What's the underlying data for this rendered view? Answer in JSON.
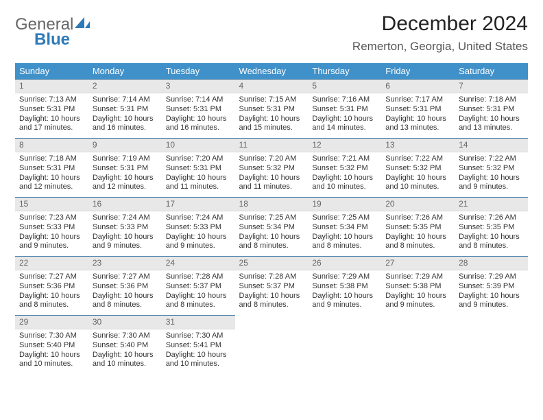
{
  "logo": {
    "text1": "General",
    "text2": "Blue",
    "color_gray": "#666666",
    "color_blue": "#2d7ab8"
  },
  "title": "December 2024",
  "location": "Remerton, Georgia, United States",
  "header_bg": "#4091c9",
  "daynum_bg": "#e8e8e8",
  "row_border": "#4a7fa8",
  "weekdays": [
    "Sunday",
    "Monday",
    "Tuesday",
    "Wednesday",
    "Thursday",
    "Friday",
    "Saturday"
  ],
  "weeks": [
    [
      {
        "n": "1",
        "sr": "Sunrise: 7:13 AM",
        "ss": "Sunset: 5:31 PM",
        "dl": "Daylight: 10 hours and 17 minutes."
      },
      {
        "n": "2",
        "sr": "Sunrise: 7:14 AM",
        "ss": "Sunset: 5:31 PM",
        "dl": "Daylight: 10 hours and 16 minutes."
      },
      {
        "n": "3",
        "sr": "Sunrise: 7:14 AM",
        "ss": "Sunset: 5:31 PM",
        "dl": "Daylight: 10 hours and 16 minutes."
      },
      {
        "n": "4",
        "sr": "Sunrise: 7:15 AM",
        "ss": "Sunset: 5:31 PM",
        "dl": "Daylight: 10 hours and 15 minutes."
      },
      {
        "n": "5",
        "sr": "Sunrise: 7:16 AM",
        "ss": "Sunset: 5:31 PM",
        "dl": "Daylight: 10 hours and 14 minutes."
      },
      {
        "n": "6",
        "sr": "Sunrise: 7:17 AM",
        "ss": "Sunset: 5:31 PM",
        "dl": "Daylight: 10 hours and 13 minutes."
      },
      {
        "n": "7",
        "sr": "Sunrise: 7:18 AM",
        "ss": "Sunset: 5:31 PM",
        "dl": "Daylight: 10 hours and 13 minutes."
      }
    ],
    [
      {
        "n": "8",
        "sr": "Sunrise: 7:18 AM",
        "ss": "Sunset: 5:31 PM",
        "dl": "Daylight: 10 hours and 12 minutes."
      },
      {
        "n": "9",
        "sr": "Sunrise: 7:19 AM",
        "ss": "Sunset: 5:31 PM",
        "dl": "Daylight: 10 hours and 12 minutes."
      },
      {
        "n": "10",
        "sr": "Sunrise: 7:20 AM",
        "ss": "Sunset: 5:31 PM",
        "dl": "Daylight: 10 hours and 11 minutes."
      },
      {
        "n": "11",
        "sr": "Sunrise: 7:20 AM",
        "ss": "Sunset: 5:32 PM",
        "dl": "Daylight: 10 hours and 11 minutes."
      },
      {
        "n": "12",
        "sr": "Sunrise: 7:21 AM",
        "ss": "Sunset: 5:32 PM",
        "dl": "Daylight: 10 hours and 10 minutes."
      },
      {
        "n": "13",
        "sr": "Sunrise: 7:22 AM",
        "ss": "Sunset: 5:32 PM",
        "dl": "Daylight: 10 hours and 10 minutes."
      },
      {
        "n": "14",
        "sr": "Sunrise: 7:22 AM",
        "ss": "Sunset: 5:32 PM",
        "dl": "Daylight: 10 hours and 9 minutes."
      }
    ],
    [
      {
        "n": "15",
        "sr": "Sunrise: 7:23 AM",
        "ss": "Sunset: 5:33 PM",
        "dl": "Daylight: 10 hours and 9 minutes."
      },
      {
        "n": "16",
        "sr": "Sunrise: 7:24 AM",
        "ss": "Sunset: 5:33 PM",
        "dl": "Daylight: 10 hours and 9 minutes."
      },
      {
        "n": "17",
        "sr": "Sunrise: 7:24 AM",
        "ss": "Sunset: 5:33 PM",
        "dl": "Daylight: 10 hours and 9 minutes."
      },
      {
        "n": "18",
        "sr": "Sunrise: 7:25 AM",
        "ss": "Sunset: 5:34 PM",
        "dl": "Daylight: 10 hours and 8 minutes."
      },
      {
        "n": "19",
        "sr": "Sunrise: 7:25 AM",
        "ss": "Sunset: 5:34 PM",
        "dl": "Daylight: 10 hours and 8 minutes."
      },
      {
        "n": "20",
        "sr": "Sunrise: 7:26 AM",
        "ss": "Sunset: 5:35 PM",
        "dl": "Daylight: 10 hours and 8 minutes."
      },
      {
        "n": "21",
        "sr": "Sunrise: 7:26 AM",
        "ss": "Sunset: 5:35 PM",
        "dl": "Daylight: 10 hours and 8 minutes."
      }
    ],
    [
      {
        "n": "22",
        "sr": "Sunrise: 7:27 AM",
        "ss": "Sunset: 5:36 PM",
        "dl": "Daylight: 10 hours and 8 minutes."
      },
      {
        "n": "23",
        "sr": "Sunrise: 7:27 AM",
        "ss": "Sunset: 5:36 PM",
        "dl": "Daylight: 10 hours and 8 minutes."
      },
      {
        "n": "24",
        "sr": "Sunrise: 7:28 AM",
        "ss": "Sunset: 5:37 PM",
        "dl": "Daylight: 10 hours and 8 minutes."
      },
      {
        "n": "25",
        "sr": "Sunrise: 7:28 AM",
        "ss": "Sunset: 5:37 PM",
        "dl": "Daylight: 10 hours and 8 minutes."
      },
      {
        "n": "26",
        "sr": "Sunrise: 7:29 AM",
        "ss": "Sunset: 5:38 PM",
        "dl": "Daylight: 10 hours and 9 minutes."
      },
      {
        "n": "27",
        "sr": "Sunrise: 7:29 AM",
        "ss": "Sunset: 5:38 PM",
        "dl": "Daylight: 10 hours and 9 minutes."
      },
      {
        "n": "28",
        "sr": "Sunrise: 7:29 AM",
        "ss": "Sunset: 5:39 PM",
        "dl": "Daylight: 10 hours and 9 minutes."
      }
    ],
    [
      {
        "n": "29",
        "sr": "Sunrise: 7:30 AM",
        "ss": "Sunset: 5:40 PM",
        "dl": "Daylight: 10 hours and 10 minutes."
      },
      {
        "n": "30",
        "sr": "Sunrise: 7:30 AM",
        "ss": "Sunset: 5:40 PM",
        "dl": "Daylight: 10 hours and 10 minutes."
      },
      {
        "n": "31",
        "sr": "Sunrise: 7:30 AM",
        "ss": "Sunset: 5:41 PM",
        "dl": "Daylight: 10 hours and 10 minutes."
      },
      null,
      null,
      null,
      null
    ]
  ]
}
